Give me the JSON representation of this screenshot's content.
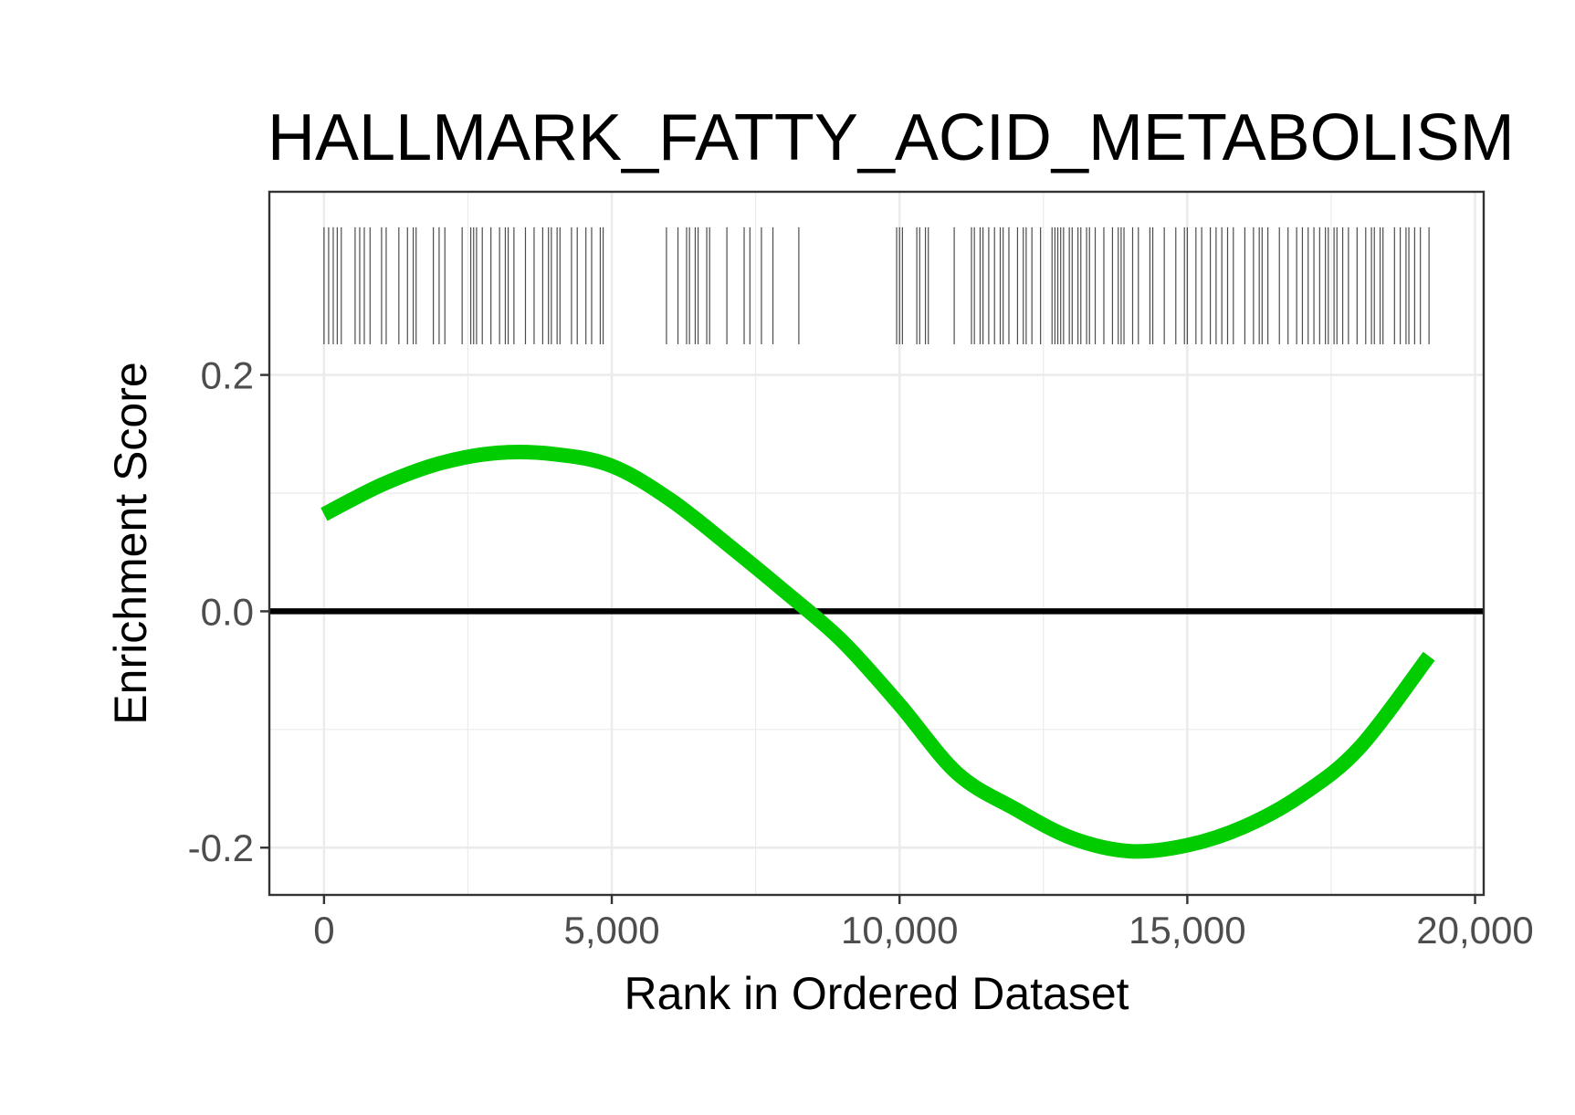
{
  "chart_data": {
    "type": "line",
    "title": "HALLMARK_FATTY_ACID_METABOLISM",
    "xlabel": "Rank in Ordered Dataset",
    "ylabel": "Enrichment Score",
    "xlim": [
      -950,
      20150
    ],
    "ylim": [
      -0.24,
      0.355
    ],
    "x_ticks": [
      0,
      5000,
      10000,
      15000,
      20000
    ],
    "x_tick_labels": [
      "0",
      "5,000",
      "10,000",
      "15,000",
      "20,000"
    ],
    "y_ticks": [
      -0.2,
      0.0,
      0.2
    ],
    "y_tick_labels": [
      "-0.2",
      "0.0",
      "0.2"
    ],
    "grid": true,
    "baseline": 0,
    "series": [
      {
        "color": "#00cc00",
        "x": [
          0,
          1000,
          2000,
          3000,
          4000,
          5000,
          6000,
          7000,
          8000,
          9000,
          10000,
          11000,
          12000,
          13000,
          14000,
          15000,
          16000,
          17000,
          18000,
          19200
        ],
        "y": [
          0.082,
          0.107,
          0.125,
          0.134,
          0.133,
          0.123,
          0.095,
          0.057,
          0.017,
          -0.025,
          -0.079,
          -0.137,
          -0.167,
          -0.192,
          -0.203,
          -0.198,
          -0.182,
          -0.155,
          -0.115,
          -0.038
        ]
      }
    ],
    "gene_hits": {
      "color": "#4d4d4d",
      "y_range": [
        0.226,
        0.325
      ],
      "positions": [
        0,
        80,
        160,
        230,
        300,
        540,
        620,
        700,
        800,
        1000,
        1080,
        1300,
        1450,
        1550,
        1600,
        1900,
        2000,
        2100,
        2400,
        2550,
        2600,
        2650,
        2750,
        2900,
        3050,
        3150,
        3200,
        3300,
        3500,
        3650,
        3800,
        3900,
        3950,
        4050,
        4100,
        4300,
        4400,
        4550,
        4650,
        4800,
        4850,
        5950,
        6150,
        6300,
        6350,
        6450,
        6500,
        6650,
        6700,
        7000,
        7300,
        7400,
        7600,
        7800,
        8250,
        9950,
        10000,
        10050,
        10300,
        10350,
        10450,
        10500,
        10950,
        11250,
        11300,
        11400,
        11450,
        11550,
        11650,
        11750,
        11800,
        11900,
        12050,
        12150,
        12200,
        12300,
        12450,
        12650,
        12700,
        12750,
        12800,
        12850,
        12950,
        13000,
        13100,
        13150,
        13250,
        13300,
        13400,
        13550,
        13700,
        13800,
        13850,
        13900,
        14050,
        14150,
        14350,
        14400,
        14600,
        14800,
        14950,
        15000,
        15150,
        15250,
        15400,
        15500,
        15600,
        15700,
        15800,
        16000,
        16150,
        16250,
        16300,
        16400,
        16600,
        16750,
        16900,
        17000,
        17100,
        17200,
        17300,
        17400,
        17450,
        17550,
        17600,
        17700,
        17800,
        17950,
        18100,
        18200,
        18250,
        18350,
        18400,
        18600,
        18700,
        18800,
        18850,
        18950,
        19050,
        19200
      ]
    },
    "colors": {
      "curve": "#00cc00",
      "baseline": "#000000",
      "grid": "#ebebeb",
      "panel_border": "#333333",
      "tick_text": "#4d4d4d"
    }
  }
}
